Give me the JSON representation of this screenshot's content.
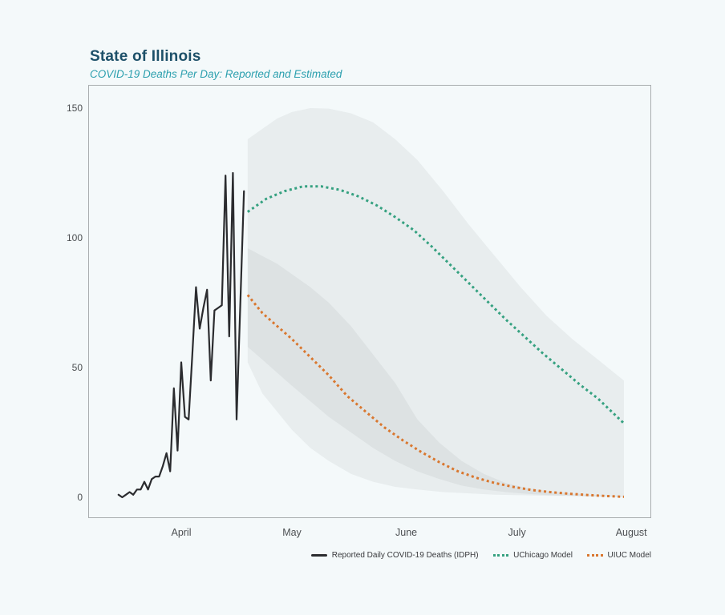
{
  "header": {
    "title": "State of Illinois",
    "subtitle": "COVID-19 Deaths Per Day: Reported and Estimated"
  },
  "colors": {
    "background": "#f4f9fa",
    "panel_border": "#a9adaf",
    "title": "#1d5069",
    "subtitle": "#2b9fae",
    "reported": "#2b2c2f",
    "uchicago": "#35a180",
    "uiuc": "#d9772f",
    "axis_text": "#4c4f52",
    "legend_text": "#38393c",
    "band_fill": "#687078",
    "band_opacity": 0.085
  },
  "legend": {
    "items": [
      {
        "label": "Reported Daily COVID-19 Deaths (IDPH)",
        "swatch": "line",
        "color_key": "reported"
      },
      {
        "label": "UChicago Model",
        "swatch": "dots",
        "color_key": "uchicago"
      },
      {
        "label": "UIUC Model",
        "swatch": "dots",
        "color_key": "uiuc"
      }
    ]
  },
  "chart_data": {
    "type": "line",
    "title": "State of Illinois",
    "subtitle": "COVID-19 Deaths Per Day: Reported and Estimated",
    "grid": false,
    "legend_position": "bottom-right",
    "x_axis": {
      "unit": "date, 2020 (day 0 = April 1)",
      "tick_labels": [
        "April",
        "May",
        "June",
        "July",
        "August"
      ],
      "tick_days": [
        0,
        30,
        61,
        91,
        122
      ]
    },
    "y_axis": {
      "ticks": [
        0,
        50,
        100,
        150
      ],
      "visible_range": [
        -8,
        158
      ]
    },
    "series": [
      {
        "name": "Reported Daily COVID-19 Deaths (IDPH)",
        "style": "solid",
        "color_key": "reported",
        "cadence": "daily",
        "start_date": "Mar 15",
        "end_date": "Apr 18",
        "start_day": -17,
        "values": [
          1,
          0,
          1,
          2,
          1,
          3,
          3,
          6,
          3,
          7,
          8,
          8,
          12,
          17,
          10,
          42,
          18,
          52,
          31,
          30,
          55,
          81,
          65,
          73,
          80,
          45,
          72,
          73,
          74,
          124,
          62,
          125,
          30,
          74,
          118
        ]
      },
      {
        "name": "UChicago Model",
        "style": "dotted",
        "color_key": "uchicago",
        "days": [
          18,
          23,
          28,
          33,
          38,
          43,
          48,
          53,
          58,
          63,
          68,
          73,
          78,
          83,
          88,
          93,
          98,
          103,
          108,
          113,
          120
        ],
        "values": [
          110,
          115,
          118,
          119.8,
          119.8,
          118.5,
          116,
          112.5,
          108,
          103,
          96.5,
          89.5,
          82.5,
          75.5,
          68.5,
          62,
          55.5,
          49.5,
          43.5,
          38,
          28.5
        ]
      },
      {
        "name": "UIUC Model",
        "style": "dotted",
        "color_key": "uiuc",
        "days": [
          18,
          22,
          26,
          30,
          35,
          40,
          45,
          50,
          55,
          60,
          65,
          70,
          75,
          80,
          85,
          90,
          95,
          100,
          105,
          110,
          115,
          120
        ],
        "values": [
          78,
          71,
          66,
          61,
          54,
          47,
          39,
          33,
          27,
          22,
          17.5,
          13.5,
          10,
          7.5,
          5.5,
          4,
          2.8,
          2,
          1.4,
          0.9,
          0.5,
          0.2
        ]
      }
    ],
    "bands": [
      {
        "name": "UChicago model uncertainty interval",
        "days": [
          18,
          22,
          26,
          30,
          35,
          40,
          46,
          52,
          58,
          64,
          71,
          78,
          85,
          92,
          99,
          106,
          113,
          120
        ],
        "hi": [
          138,
          142,
          146,
          148.5,
          150,
          149.8,
          148,
          144.5,
          138,
          130,
          118,
          105,
          93,
          81,
          70,
          61,
          53,
          45
        ],
        "lo": [
          52,
          40,
          33,
          26,
          19,
          14,
          9,
          6,
          4,
          3,
          2,
          1.5,
          1,
          0.8,
          0.6,
          0.5,
          0.4,
          0.3
        ]
      },
      {
        "name": "UIUC model uncertainty interval",
        "days": [
          18,
          22,
          26,
          30,
          35,
          40,
          46,
          52,
          58,
          64,
          70,
          76,
          82,
          88,
          94,
          100,
          110,
          120
        ],
        "hi": [
          96,
          93,
          90,
          86,
          81,
          75,
          66,
          55,
          44,
          30,
          21,
          14,
          9,
          5.5,
          3.5,
          2.2,
          1,
          0.5
        ],
        "lo": [
          58,
          53,
          48,
          43,
          37,
          31,
          25,
          19,
          14,
          10,
          7,
          4.5,
          3,
          2,
          1.3,
          0.8,
          0.3,
          0.1
        ]
      }
    ]
  }
}
